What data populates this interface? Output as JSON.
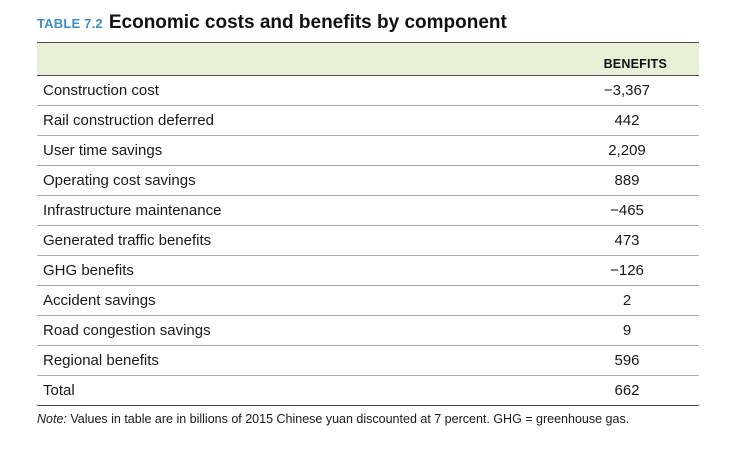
{
  "table": {
    "label": "TABLE 7.2",
    "title": "Economic costs and benefits by component",
    "column_header": "BENEFITS",
    "rows": [
      {
        "component": "Construction cost",
        "benefits": "−3,367"
      },
      {
        "component": "Rail construction deferred",
        "benefits": "442"
      },
      {
        "component": "User time savings",
        "benefits": "2,209"
      },
      {
        "component": "Operating cost savings",
        "benefits": "889"
      },
      {
        "component": "Infrastructure maintenance",
        "benefits": "−465"
      },
      {
        "component": "Generated traffic benefits",
        "benefits": "473"
      },
      {
        "component": "GHG benefits",
        "benefits": "−126"
      },
      {
        "component": "Accident savings",
        "benefits": "2"
      },
      {
        "component": "Road congestion savings",
        "benefits": "9"
      },
      {
        "component": "Regional benefits",
        "benefits": "596"
      },
      {
        "component": "Total",
        "benefits": "662"
      }
    ],
    "note_label": "Note:",
    "note_text": " Values in table are in billions of 2015 Chinese yuan discounted at 7 percent. GHG = greenhouse gas."
  },
  "colors": {
    "label_blue": "#3f8fc4",
    "header_fill": "#e8efd7",
    "rule": "#4a4a4a"
  }
}
